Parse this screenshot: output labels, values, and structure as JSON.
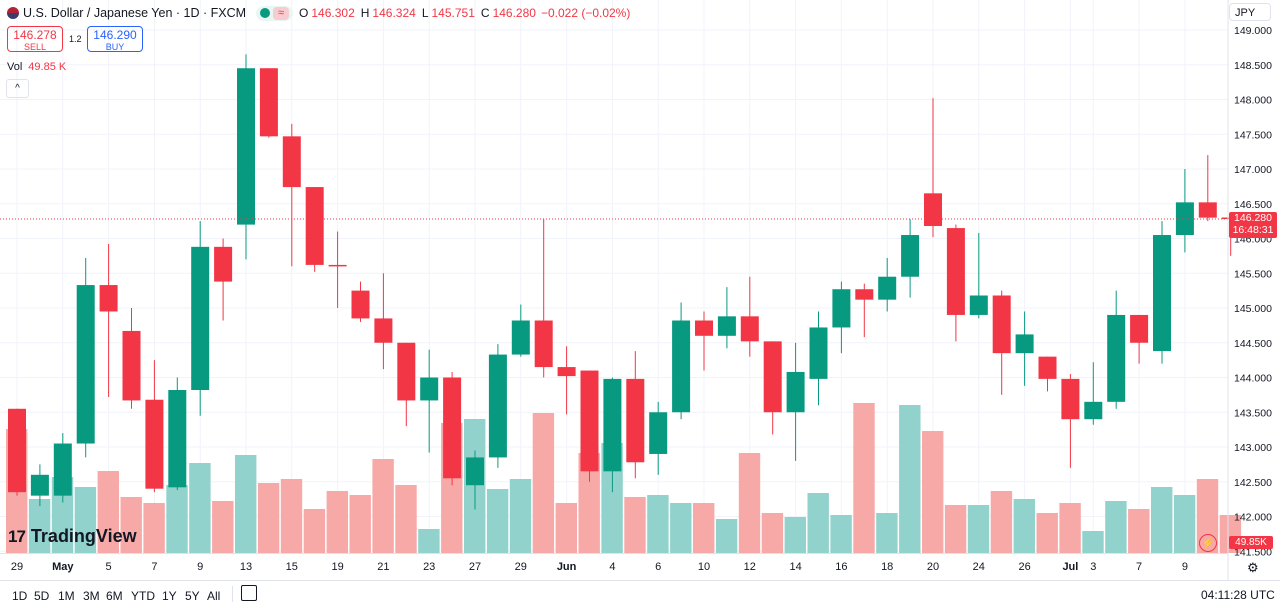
{
  "header": {
    "title": "U.S. Dollar / Japanese Yen · 1D · FXCM",
    "wave_symbol": "≈",
    "open_label": "O",
    "open": "146.302",
    "high_label": "H",
    "high": "146.324",
    "low_label": "L",
    "low": "145.751",
    "close_label": "C",
    "close": "146.280",
    "change": "−0.022 (−0.02%)"
  },
  "trade": {
    "sell_price": "146.278",
    "sell_label": "SELL",
    "spread": "1.2",
    "buy_price": "146.290",
    "buy_label": "BUY"
  },
  "volume_legend": {
    "label": "Vol",
    "value": "49.85 K"
  },
  "currency": "JPY",
  "collapse_icon": "^",
  "last_price": {
    "price": "146.280",
    "countdown": "16:48:31"
  },
  "last_volume": "49.85K",
  "logo": {
    "mark": "17",
    "text": "TradingView"
  },
  "ranges": [
    "1D",
    "5D",
    "1M",
    "3M",
    "6M",
    "YTD",
    "1Y",
    "5Y",
    "All"
  ],
  "clock": "04:11:28 UTC",
  "colors": {
    "up": "#089981",
    "down": "#f23645",
    "vol_up": "#92d2cc",
    "vol_down": "#f7a9a7"
  },
  "chart_data": {
    "type": "candlestick",
    "y_ticks": [
      "149.000",
      "148.500",
      "148.000",
      "147.500",
      "147.000",
      "146.500",
      "146.000",
      "145.500",
      "145.000",
      "144.500",
      "144.000",
      "143.500",
      "143.000",
      "142.500",
      "142.000",
      "141.500"
    ],
    "ylim": [
      141.5,
      149.0
    ],
    "x_ticks": [
      "29",
      "May",
      "5",
      "7",
      "9",
      "13",
      "15",
      "19",
      "21",
      "23",
      "27",
      "29",
      "Jun",
      "4",
      "6",
      "10",
      "12",
      "14",
      "16",
      "18",
      "20",
      "24",
      "26",
      "Jul",
      "3",
      "7",
      "9"
    ],
    "candles": [
      {
        "o": 143.55,
        "h": 143.55,
        "l": 142.3,
        "c": 142.35
      },
      {
        "o": 142.3,
        "h": 142.75,
        "l": 142.15,
        "c": 142.6
      },
      {
        "o": 142.3,
        "h": 143.2,
        "l": 142.2,
        "c": 143.05
      },
      {
        "o": 143.05,
        "h": 145.72,
        "l": 142.85,
        "c": 145.33
      },
      {
        "o": 145.33,
        "h": 145.92,
        "l": 143.72,
        "c": 144.95
      },
      {
        "o": 144.67,
        "h": 145.0,
        "l": 143.55,
        "c": 143.67
      },
      {
        "o": 143.68,
        "h": 144.25,
        "l": 142.35,
        "c": 142.4
      },
      {
        "o": 142.42,
        "h": 144.0,
        "l": 142.38,
        "c": 143.82
      },
      {
        "o": 143.82,
        "h": 146.25,
        "l": 143.45,
        "c": 145.88
      },
      {
        "o": 145.88,
        "h": 146.0,
        "l": 144.82,
        "c": 145.38
      },
      {
        "o": 146.2,
        "h": 148.65,
        "l": 145.7,
        "c": 148.45
      },
      {
        "o": 148.45,
        "h": 148.45,
        "l": 147.45,
        "c": 147.47
      },
      {
        "o": 147.47,
        "h": 147.65,
        "l": 145.6,
        "c": 146.74
      },
      {
        "o": 146.74,
        "h": 146.74,
        "l": 145.52,
        "c": 145.62
      },
      {
        "o": 145.62,
        "h": 146.1,
        "l": 145.0,
        "c": 145.6
      },
      {
        "o": 145.25,
        "h": 145.38,
        "l": 144.8,
        "c": 144.85
      },
      {
        "o": 144.85,
        "h": 145.5,
        "l": 144.12,
        "c": 144.5
      },
      {
        "o": 144.5,
        "h": 144.5,
        "l": 143.3,
        "c": 143.67
      },
      {
        "o": 143.67,
        "h": 144.4,
        "l": 142.92,
        "c": 144.0
      },
      {
        "o": 144.0,
        "h": 144.08,
        "l": 142.45,
        "c": 142.55
      },
      {
        "o": 142.45,
        "h": 142.95,
        "l": 142.1,
        "c": 142.85
      },
      {
        "o": 142.85,
        "h": 144.48,
        "l": 142.7,
        "c": 144.33
      },
      {
        "o": 144.33,
        "h": 145.05,
        "l": 144.3,
        "c": 144.82
      },
      {
        "o": 144.82,
        "h": 146.28,
        "l": 144.0,
        "c": 144.15
      },
      {
        "o": 144.15,
        "h": 144.45,
        "l": 143.47,
        "c": 144.02
      },
      {
        "o": 144.1,
        "h": 144.1,
        "l": 142.5,
        "c": 142.65
      },
      {
        "o": 142.65,
        "h": 144.0,
        "l": 142.35,
        "c": 143.98
      },
      {
        "o": 143.98,
        "h": 144.38,
        "l": 142.55,
        "c": 142.78
      },
      {
        "o": 142.9,
        "h": 143.65,
        "l": 142.6,
        "c": 143.5
      },
      {
        "o": 143.5,
        "h": 145.08,
        "l": 143.4,
        "c": 144.82
      },
      {
        "o": 144.82,
        "h": 144.95,
        "l": 144.1,
        "c": 144.6
      },
      {
        "o": 144.6,
        "h": 145.3,
        "l": 144.42,
        "c": 144.88
      },
      {
        "o": 144.88,
        "h": 145.45,
        "l": 144.3,
        "c": 144.52
      },
      {
        "o": 144.52,
        "h": 144.52,
        "l": 143.18,
        "c": 143.5
      },
      {
        "o": 143.5,
        "h": 144.5,
        "l": 142.8,
        "c": 144.08
      },
      {
        "o": 143.98,
        "h": 144.95,
        "l": 143.6,
        "c": 144.72
      },
      {
        "o": 144.72,
        "h": 145.38,
        "l": 144.35,
        "c": 145.27
      },
      {
        "o": 145.27,
        "h": 145.35,
        "l": 144.58,
        "c": 145.12
      },
      {
        "o": 145.12,
        "h": 145.72,
        "l": 144.95,
        "c": 145.45
      },
      {
        "o": 145.45,
        "h": 146.28,
        "l": 145.15,
        "c": 146.05
      },
      {
        "o": 146.65,
        "h": 148.02,
        "l": 146.02,
        "c": 146.18
      },
      {
        "o": 146.15,
        "h": 146.2,
        "l": 144.52,
        "c": 144.9
      },
      {
        "o": 144.9,
        "h": 146.08,
        "l": 144.85,
        "c": 145.18
      },
      {
        "o": 145.18,
        "h": 145.25,
        "l": 143.75,
        "c": 144.35
      },
      {
        "o": 144.35,
        "h": 144.95,
        "l": 143.88,
        "c": 144.62
      },
      {
        "o": 144.3,
        "h": 144.3,
        "l": 143.8,
        "c": 143.98
      },
      {
        "o": 143.98,
        "h": 144.05,
        "l": 142.7,
        "c": 143.4
      },
      {
        "o": 143.4,
        "h": 144.22,
        "l": 143.32,
        "c": 143.65
      },
      {
        "o": 143.65,
        "h": 145.25,
        "l": 143.55,
        "c": 144.9
      },
      {
        "o": 144.9,
        "h": 144.9,
        "l": 144.2,
        "c": 144.5
      },
      {
        "o": 144.38,
        "h": 146.25,
        "l": 144.2,
        "c": 146.05
      },
      {
        "o": 146.05,
        "h": 147.0,
        "l": 145.8,
        "c": 146.52
      },
      {
        "o": 146.52,
        "h": 147.2,
        "l": 146.25,
        "c": 146.3
      },
      {
        "o": 146.302,
        "h": 146.324,
        "l": 145.751,
        "c": 146.28
      }
    ],
    "volumes": [
      0.62,
      0.27,
      0.38,
      0.33,
      0.41,
      0.28,
      0.25,
      0.34,
      0.45,
      0.26,
      0.49,
      0.35,
      0.37,
      0.22,
      0.31,
      0.29,
      0.47,
      0.34,
      0.12,
      0.65,
      0.67,
      0.32,
      0.37,
      0.7,
      0.25,
      0.5,
      0.55,
      0.28,
      0.29,
      0.25,
      0.25,
      0.17,
      0.5,
      0.2,
      0.18,
      0.3,
      0.19,
      0.75,
      0.2,
      0.74,
      0.61,
      0.24,
      0.24,
      0.31,
      0.27,
      0.2,
      0.25,
      0.11,
      0.26,
      0.22,
      0.33,
      0.29,
      0.37,
      0.19
    ]
  }
}
